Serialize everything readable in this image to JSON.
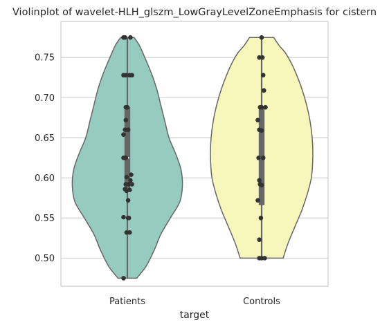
{
  "chart_data": {
    "type": "violin",
    "title": "Violinplot of wavelet-HLH_glszm_LowGrayLevelZoneEmphasis for cistern",
    "xlabel": "target",
    "ylabel": "",
    "categories": [
      "Patients",
      "Controls"
    ],
    "ylim": [
      0.465,
      0.795
    ],
    "yticks": [
      "0.50",
      "0.55",
      "0.60",
      "0.65",
      "0.70",
      "0.75"
    ],
    "grid": true,
    "colors": {
      "Patients": "#96cbc0",
      "Controls": "#f7f7bc",
      "outline": "#666666",
      "points": "#333333",
      "box": "#666666",
      "grid": "#cccccc",
      "frame": "#cccccc"
    },
    "series": [
      {
        "name": "Patients",
        "points": [
          [
            -0.05,
            0.775
          ],
          [
            -0.03,
            0.775
          ],
          [
            0.04,
            0.775
          ],
          [
            -0.05,
            0.728
          ],
          [
            -0.02,
            0.728
          ],
          [
            0.03,
            0.728
          ],
          [
            0.06,
            0.728
          ],
          [
            -0.02,
            0.688
          ],
          [
            0.0,
            0.688
          ],
          [
            -0.02,
            0.672
          ],
          [
            -0.03,
            0.66
          ],
          [
            0.01,
            0.66
          ],
          [
            -0.05,
            0.654
          ],
          [
            -0.05,
            0.625
          ],
          [
            -0.035,
            0.625
          ],
          [
            -0.02,
            0.625
          ],
          [
            0.05,
            0.604
          ],
          [
            -0.01,
            0.601
          ],
          [
            0.04,
            0.597
          ],
          [
            -0.02,
            0.592
          ],
          [
            0.02,
            0.592
          ],
          [
            0.06,
            0.592
          ],
          [
            -0.03,
            0.586
          ],
          [
            0.03,
            0.585
          ],
          [
            -0.01,
            0.584
          ],
          [
            0.01,
            0.572
          ],
          [
            -0.05,
            0.551
          ],
          [
            0.01,
            0.55
          ],
          [
            0.02,
            0.55
          ],
          [
            -0.01,
            0.532
          ],
          [
            0.03,
            0.532
          ],
          [
            -0.05,
            0.475
          ]
        ],
        "quartiles": [
          0.587,
          0.625,
          0.688
        ],
        "whiskers": [
          0.475,
          0.775
        ],
        "density": [
          [
            0.475,
            0.07
          ],
          [
            0.49,
            0.14
          ],
          [
            0.51,
            0.2
          ],
          [
            0.53,
            0.25
          ],
          [
            0.55,
            0.32
          ],
          [
            0.57,
            0.39
          ],
          [
            0.59,
            0.41
          ],
          [
            0.61,
            0.4
          ],
          [
            0.63,
            0.36
          ],
          [
            0.65,
            0.31
          ],
          [
            0.67,
            0.28
          ],
          [
            0.69,
            0.25
          ],
          [
            0.71,
            0.22
          ],
          [
            0.73,
            0.18
          ],
          [
            0.75,
            0.13
          ],
          [
            0.765,
            0.09
          ],
          [
            0.775,
            0.05
          ]
        ]
      },
      {
        "name": "Controls",
        "points": [
          [
            0.0,
            0.775
          ],
          [
            -0.03,
            0.75
          ],
          [
            0.01,
            0.75
          ],
          [
            0.02,
            0.728
          ],
          [
            0.03,
            0.709
          ],
          [
            -0.02,
            0.688
          ],
          [
            0.0,
            0.688
          ],
          [
            0.05,
            0.688
          ],
          [
            -0.05,
            0.672
          ],
          [
            -0.03,
            0.66
          ],
          [
            0.0,
            0.659
          ],
          [
            -0.04,
            0.625
          ],
          [
            0.02,
            0.625
          ],
          [
            -0.03,
            0.597
          ],
          [
            -0.02,
            0.592
          ],
          [
            0.0,
            0.591
          ],
          [
            -0.05,
            0.572
          ],
          [
            -0.01,
            0.55
          ],
          [
            -0.03,
            0.523
          ],
          [
            -0.03,
            0.5
          ],
          [
            0.0,
            0.5
          ],
          [
            0.04,
            0.5
          ]
        ],
        "quartiles": [
          0.566,
          0.625,
          0.688
        ],
        "whiskers": [
          0.5,
          0.775
        ],
        "density": [
          [
            0.5,
            0.16
          ],
          [
            0.52,
            0.2
          ],
          [
            0.54,
            0.25
          ],
          [
            0.56,
            0.3
          ],
          [
            0.58,
            0.34
          ],
          [
            0.6,
            0.37
          ],
          [
            0.62,
            0.38
          ],
          [
            0.64,
            0.38
          ],
          [
            0.66,
            0.37
          ],
          [
            0.68,
            0.35
          ],
          [
            0.7,
            0.32
          ],
          [
            0.72,
            0.28
          ],
          [
            0.74,
            0.23
          ],
          [
            0.755,
            0.18
          ],
          [
            0.765,
            0.13
          ],
          [
            0.775,
            0.09
          ]
        ]
      }
    ]
  }
}
